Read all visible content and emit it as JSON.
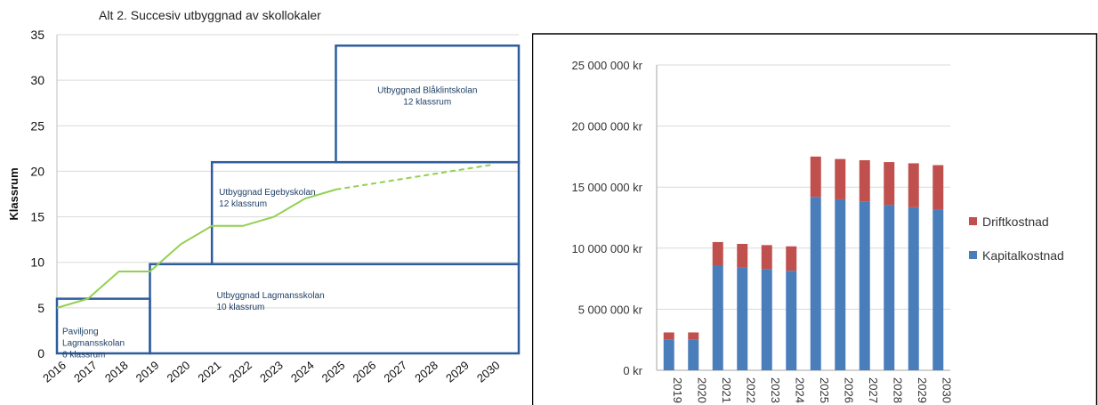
{
  "chart_data": [
    {
      "type": "line",
      "title": "Alt 2. Succesiv utbyggnad av skollokaler",
      "xlabel": "",
      "ylabel": "Klassrum",
      "ylim": [
        0,
        35
      ],
      "yticks": [
        "0",
        "5",
        "10",
        "15",
        "20",
        "25",
        "30",
        "35"
      ],
      "categories": [
        "2016",
        "2017",
        "2018",
        "2019",
        "2020",
        "2021",
        "2022",
        "2023",
        "2024",
        "2025",
        "2026",
        "2027",
        "2028",
        "2029",
        "2030"
      ],
      "grid": true,
      "colors": {
        "line": "#92d050",
        "boxes": "#2e5d9e",
        "grid": "#d9d9d9"
      },
      "series": [
        {
          "style": "solid",
          "x": [
            "2016",
            "2017",
            "2018",
            "2019",
            "2020",
            "2021",
            "2022",
            "2023",
            "2024",
            "2025"
          ],
          "values": [
            5,
            6,
            9,
            9,
            12,
            14,
            14,
            15,
            17,
            18
          ]
        },
        {
          "style": "dashed",
          "x": [
            "2025",
            "2030"
          ],
          "values": [
            18,
            20.7
          ]
        }
      ],
      "capacity_boxes": [
        {
          "lines": [
            "Paviljong",
            "Lagmansskolan",
            "6 klassrum"
          ],
          "x0": 2016,
          "x1": 2019,
          "y0": 0,
          "y1": 6
        },
        {
          "lines": [
            "Utbyggnad Lagmansskolan",
            "10 klassrum"
          ],
          "x0": 2019,
          "x1": 2030.9,
          "y0": 0,
          "y1": 9.8
        },
        {
          "lines": [
            "Utbyggnad Egebyskolan",
            "12 klassrum"
          ],
          "x0": 2021,
          "x1": 2030.9,
          "y0": 9.8,
          "y1": 21
        },
        {
          "lines": [
            "Utbyggnad Blåklintskolan",
            "12 klassrum"
          ],
          "x0": 2025,
          "x1": 2030.9,
          "y0": 21,
          "y1": 33.8
        }
      ]
    },
    {
      "type": "bar",
      "stacked": true,
      "title": "",
      "xlabel": "",
      "ylabel": "",
      "ylim": [
        0,
        25000000
      ],
      "yticks": [
        "0 kr",
        "5 000 000 kr",
        "10 000 000 kr",
        "15 000 000 kr",
        "20 000 000 kr",
        "25 000 000 kr"
      ],
      "categories": [
        "2019",
        "2020",
        "2021",
        "2022",
        "2023",
        "2024",
        "2025",
        "2026",
        "2027",
        "2028",
        "2029",
        "2030"
      ],
      "grid": true,
      "legend_position": "right",
      "series": [
        {
          "name": "Kapitalkostnad",
          "color": "#4a7ebb",
          "values": [
            2500000,
            2500000,
            8600000,
            8450000,
            8300000,
            8150000,
            14200000,
            14000000,
            13800000,
            13550000,
            13350000,
            13150000
          ]
        },
        {
          "name": "Driftkostnad",
          "color": "#c0504d",
          "values": [
            600000,
            600000,
            1900000,
            1900000,
            1950000,
            2000000,
            3300000,
            3300000,
            3400000,
            3500000,
            3600000,
            3650000
          ]
        }
      ],
      "legend": [
        "Driftkostnad",
        "Kapitalkostnad"
      ]
    }
  ]
}
